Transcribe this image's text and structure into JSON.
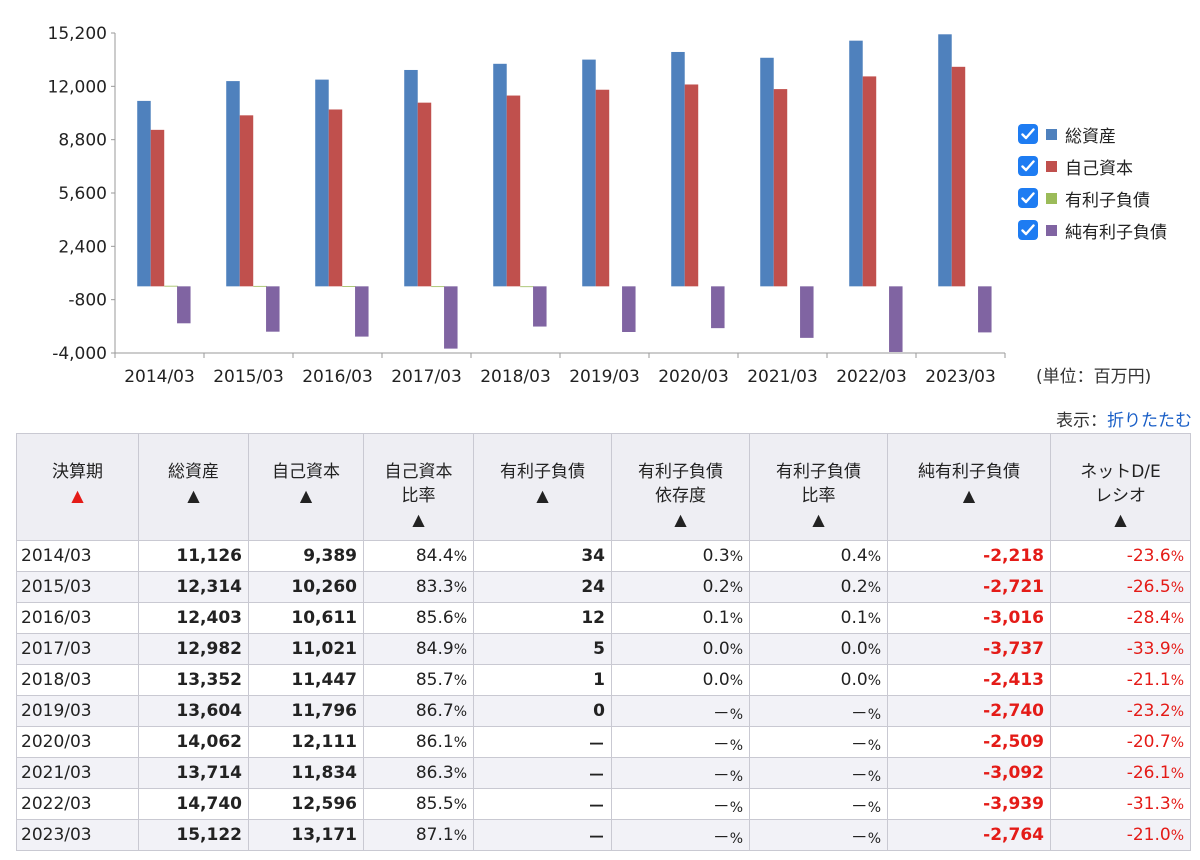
{
  "chart_data": {
    "type": "bar",
    "categories": [
      "2014/03",
      "2015/03",
      "2016/03",
      "2017/03",
      "2018/03",
      "2019/03",
      "2020/03",
      "2021/03",
      "2022/03",
      "2023/03"
    ],
    "series": [
      {
        "name": "総資産",
        "color": "#4f81bd",
        "values": [
          11126,
          12314,
          12403,
          12982,
          13352,
          13604,
          14062,
          13714,
          14740,
          15122
        ]
      },
      {
        "name": "自己資本",
        "color": "#c0504d",
        "values": [
          9389,
          10260,
          10611,
          11021,
          11447,
          11796,
          12111,
          11834,
          12596,
          13171
        ]
      },
      {
        "name": "有利子負債",
        "color": "#9bbb59",
        "values": [
          34,
          24,
          12,
          5,
          1,
          0,
          0,
          0,
          0,
          0
        ]
      },
      {
        "name": "純有利子負債",
        "color": "#8064a2",
        "values": [
          -2218,
          -2721,
          -3016,
          -3737,
          -2413,
          -2740,
          -2509,
          -3092,
          -3939,
          -2764
        ]
      }
    ],
    "ylim": [
      -4000,
      15200
    ],
    "yticks": [
      "15,200",
      "12,000",
      "8,800",
      "5,600",
      "2,400",
      "-800",
      "-4,000"
    ],
    "ytick_values": [
      15200,
      12000,
      8800,
      5600,
      2400,
      -800,
      -4000
    ],
    "grid": false,
    "legend": "right",
    "unit_label": "(単位：百万円)"
  },
  "display": {
    "prefix": "表示：",
    "toggle_label": "折りたたむ"
  },
  "table": {
    "headers": [
      {
        "label": "決算期",
        "active": true
      },
      {
        "label": "総資産"
      },
      {
        "label": "自己資本"
      },
      {
        "label": "自己資本\n比率"
      },
      {
        "label": "有利子負債"
      },
      {
        "label": "有利子負債\n依存度"
      },
      {
        "label": "有利子負債\n比率"
      },
      {
        "label": "純有利子負債"
      },
      {
        "label": "ネットD/E\nレシオ"
      }
    ],
    "sort_mark": "▲",
    "rows": [
      [
        "2014/03",
        "11,126",
        "9,389",
        "84.4",
        "34",
        "0.3",
        "0.4",
        "-2,218",
        "-23.6"
      ],
      [
        "2015/03",
        "12,314",
        "10,260",
        "83.3",
        "24",
        "0.2",
        "0.2",
        "-2,721",
        "-26.5"
      ],
      [
        "2016/03",
        "12,403",
        "10,611",
        "85.6",
        "12",
        "0.1",
        "0.1",
        "-3,016",
        "-28.4"
      ],
      [
        "2017/03",
        "12,982",
        "11,021",
        "84.9",
        "5",
        "0.0",
        "0.0",
        "-3,737",
        "-33.9"
      ],
      [
        "2018/03",
        "13,352",
        "11,447",
        "85.7",
        "1",
        "0.0",
        "0.0",
        "-2,413",
        "-21.1"
      ],
      [
        "2019/03",
        "13,604",
        "11,796",
        "86.7",
        "0",
        "－",
        "－",
        "-2,740",
        "-23.2"
      ],
      [
        "2020/03",
        "14,062",
        "12,111",
        "86.1",
        "－",
        "－",
        "－",
        "-2,509",
        "-20.7"
      ],
      [
        "2021/03",
        "13,714",
        "11,834",
        "86.3",
        "－",
        "－",
        "－",
        "-3,092",
        "-26.1"
      ],
      [
        "2022/03",
        "14,740",
        "12,596",
        "85.5",
        "－",
        "－",
        "－",
        "-3,939",
        "-31.3"
      ],
      [
        "2023/03",
        "15,122",
        "13,171",
        "87.1",
        "－",
        "－",
        "－",
        "-2,764",
        "-21.0"
      ]
    ],
    "pct_suffix": "%"
  }
}
